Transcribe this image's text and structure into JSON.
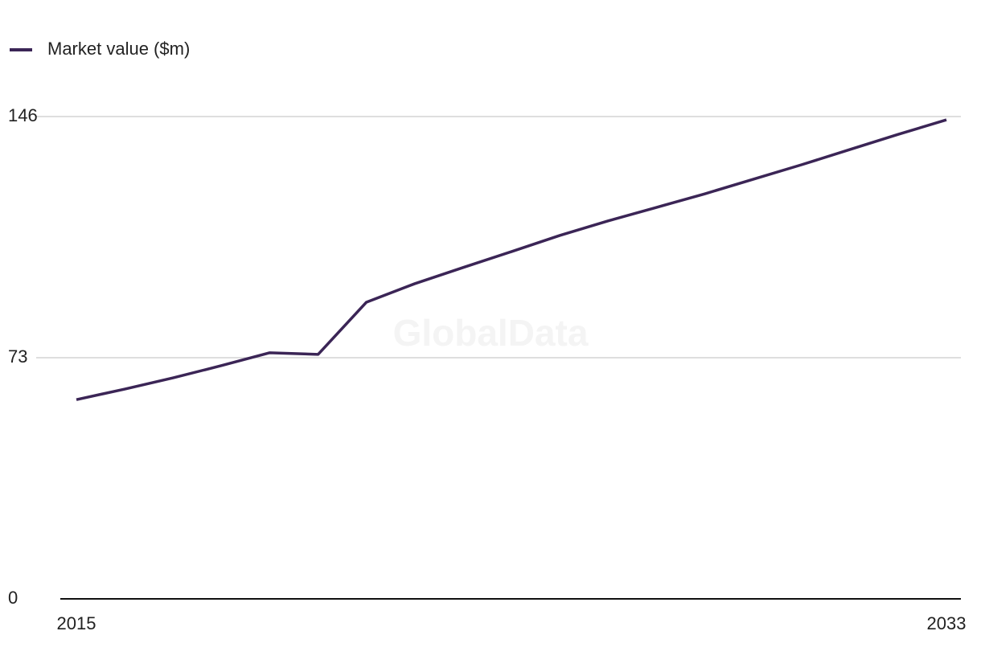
{
  "chart_data": {
    "type": "line",
    "legend_position": "top-left",
    "watermark": "GlobalData",
    "x": [
      2015,
      2016,
      2017,
      2018,
      2019,
      2020,
      2021,
      2022,
      2023,
      2024,
      2025,
      2026,
      2027,
      2028,
      2029,
      2030,
      2031,
      2032,
      2033
    ],
    "series": [
      {
        "name": "Market value ($m)",
        "color": "#3b2556",
        "values": [
          60.3,
          63.5,
          66.9,
          70.6,
          74.5,
          74.0,
          89.8,
          95.4,
          100.3,
          105.1,
          110.0,
          114.4,
          118.5,
          122.6,
          127.0,
          131.4,
          136.0,
          140.6,
          145.0
        ]
      }
    ],
    "xlim": [
      2015,
      2033
    ],
    "xticks": [
      2015,
      2033
    ],
    "ylim": [
      0,
      146
    ],
    "yticks": [
      0,
      73,
      146
    ],
    "grid": true
  }
}
